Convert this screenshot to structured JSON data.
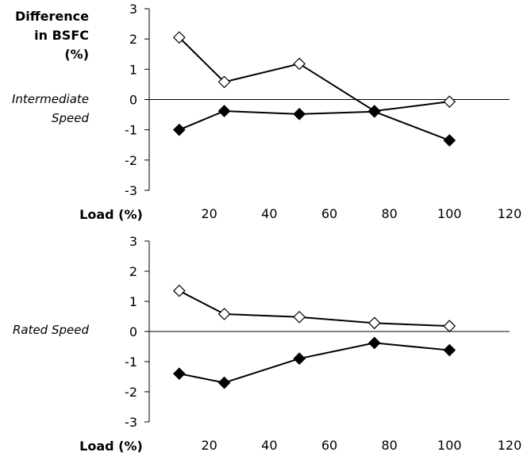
{
  "chart_data": [
    {
      "type": "line",
      "title_lines": [
        "Difference",
        "in BSFC",
        "(%)"
      ],
      "panel_label_lines": [
        "Intermediate",
        "Speed"
      ],
      "xlabel": "Load (%)",
      "xticks": [
        20,
        40,
        60,
        80,
        100,
        120
      ],
      "yticks": [
        3,
        2,
        1,
        0,
        -1,
        -2,
        -3
      ],
      "xlim": [
        0,
        120
      ],
      "ylim": [
        -3,
        3
      ],
      "series": [
        {
          "marker": "open-diamond",
          "color": "#000000",
          "x": [
            10,
            25,
            50,
            75,
            100
          ],
          "y": [
            2.05,
            0.58,
            1.18,
            -0.38,
            -0.07
          ]
        },
        {
          "marker": "filled-diamond",
          "color": "#000000",
          "x": [
            10,
            25,
            50,
            75,
            100
          ],
          "y": [
            -1.0,
            -0.38,
            -0.48,
            -0.4,
            -1.35
          ]
        }
      ]
    },
    {
      "type": "line",
      "panel_label_lines": [
        "Rated Speed"
      ],
      "xlabel": "Load (%)",
      "xticks": [
        20,
        40,
        60,
        80,
        100,
        120
      ],
      "yticks": [
        3,
        2,
        1,
        0,
        -1,
        -2,
        -3
      ],
      "xlim": [
        0,
        120
      ],
      "ylim": [
        -3,
        3
      ],
      "series": [
        {
          "marker": "open-diamond",
          "color": "#000000",
          "x": [
            10,
            25,
            50,
            75,
            100
          ],
          "y": [
            1.35,
            0.58,
            0.48,
            0.28,
            0.18
          ]
        },
        {
          "marker": "filled-diamond",
          "color": "#000000",
          "x": [
            10,
            25,
            50,
            75,
            100
          ],
          "y": [
            -1.4,
            -1.7,
            -0.9,
            -0.38,
            -0.62
          ]
        }
      ]
    }
  ]
}
